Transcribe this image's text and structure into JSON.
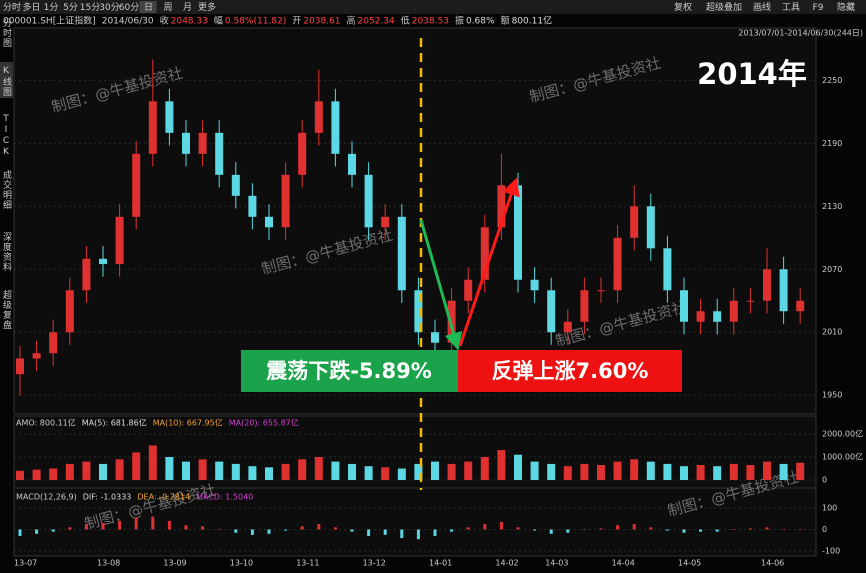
{
  "toolbar": {
    "left": [
      "分时",
      "多日",
      "1分",
      "5分",
      "15分",
      "30分",
      "60分",
      "日",
      "周",
      "月",
      "更多"
    ],
    "right": [
      "复权",
      "超级叠加",
      "画线",
      "工具",
      "F9",
      "隐藏"
    ]
  },
  "info": [
    "000001.SH[上证指数]",
    "2014/06/30",
    "收",
    "2048.33",
    "幅",
    "0.58%(11.82)",
    "开",
    "2038.61",
    "高",
    "2052.34",
    "低",
    "2038.53",
    "振",
    "0.68%",
    "额",
    "800.11亿"
  ],
  "range": "2013/07/01-2014/06/30(244日)",
  "sidebar": [
    "分时图",
    "K线图",
    "TICK",
    "成交明细",
    "深度资料",
    "超级复盘"
  ],
  "year": "2014年",
  "watermark": "制图：@牛基投资社",
  "annotations": [
    "震荡下跌-5.89%",
    "反弹上涨7.60%"
  ],
  "chart_data": [
    {
      "type": "candlestick",
      "up_color": "#e03131",
      "down_color": "#5bd8e3",
      "categories": [
        "13-07",
        null,
        null,
        null,
        null,
        "13-08",
        null,
        null,
        null,
        "13-09",
        null,
        null,
        null,
        "13-10",
        null,
        null,
        null,
        "13-11",
        null,
        null,
        null,
        "13-12",
        null,
        null,
        null,
        "14-01",
        null,
        null,
        null,
        "14-02",
        null,
        null,
        "14-03",
        null,
        null,
        null,
        "14-04",
        null,
        null,
        null,
        "14-05",
        null,
        null,
        null,
        null,
        "14-06",
        null,
        null
      ],
      "open": [
        1970,
        1985,
        1990,
        2010,
        2050,
        2080,
        2075,
        2120,
        2180,
        2230,
        2200,
        2180,
        2200,
        2160,
        2140,
        2120,
        2110,
        2160,
        2200,
        2230,
        2180,
        2160,
        2110,
        2120,
        2050,
        2010,
        2000,
        2040,
        2060,
        2110,
        2150,
        2060,
        2050,
        2010,
        2020,
        2050,
        2050,
        2100,
        2130,
        2090,
        2050,
        2020,
        2030,
        2020,
        2040,
        2040,
        2070,
        2030
      ],
      "close": [
        1985,
        1990,
        2010,
        2050,
        2080,
        2075,
        2120,
        2180,
        2230,
        2200,
        2180,
        2200,
        2160,
        2140,
        2120,
        2110,
        2160,
        2200,
        2230,
        2180,
        2160,
        2110,
        2120,
        2050,
        2010,
        2000,
        2040,
        2060,
        2110,
        2150,
        2060,
        2050,
        2010,
        2020,
        2050,
        2050,
        2100,
        2130,
        2090,
        2050,
        2020,
        2030,
        2020,
        2040,
        2040,
        2070,
        2030,
        2040
      ],
      "high": [
        1997,
        2002,
        2022,
        2062,
        2092,
        2092,
        2132,
        2192,
        2270,
        2242,
        2212,
        2212,
        2212,
        2172,
        2152,
        2132,
        2172,
        2212,
        2260,
        2242,
        2192,
        2172,
        2132,
        2132,
        2062,
        2022,
        2052,
        2072,
        2122,
        2180,
        2162,
        2072,
        2062,
        2032,
        2062,
        2062,
        2112,
        2150,
        2142,
        2102,
        2062,
        2042,
        2042,
        2052,
        2052,
        2090,
        2082,
        2052
      ],
      "low": [
        1950,
        1973,
        1978,
        1998,
        2038,
        2063,
        2063,
        2108,
        2168,
        2188,
        2168,
        2168,
        2148,
        2128,
        2108,
        2098,
        2098,
        2148,
        2188,
        2168,
        2148,
        2098,
        2098,
        2038,
        1998,
        1988,
        1988,
        2028,
        2048,
        2098,
        2048,
        2038,
        1998,
        1998,
        2008,
        2038,
        2038,
        2088,
        2078,
        2038,
        2008,
        2008,
        2008,
        2008,
        2028,
        2028,
        2018,
        2018
      ],
      "ylim": [
        1934,
        2298
      ],
      "yticks": [
        1950,
        2010,
        2070,
        2130,
        2190,
        2250
      ],
      "grid": true
    },
    {
      "type": "bar",
      "legend": [
        "AMO: 800.11亿",
        "MA(5): 681.86亿",
        "MA(10): 667.95亿",
        "MA(20): 655.87亿"
      ],
      "values": [
        400,
        450,
        500,
        700,
        800,
        700,
        900,
        1200,
        1500,
        1000,
        800,
        900,
        800,
        700,
        600,
        550,
        700,
        900,
        1000,
        800,
        700,
        600,
        550,
        500,
        700,
        800,
        700,
        800,
        1000,
        1300,
        1100,
        800,
        700,
        600,
        700,
        650,
        800,
        900,
        800,
        700,
        600,
        650,
        600,
        700,
        650,
        800,
        700,
        750
      ],
      "ylim": [
        0,
        2000
      ],
      "yticks": [
        {
          "value": 0,
          "label": "0"
        },
        {
          "value": 1000,
          "label": "1000.00亿"
        },
        {
          "value": 2000,
          "label": "2000.00亿"
        }
      ]
    },
    {
      "type": "bar",
      "legend": [
        "MACD(12,26,9)",
        "DIF: -1.0333",
        "DEA: -0.2814",
        "MACD: 1.5040"
      ],
      "values": [
        -30,
        -20,
        -10,
        10,
        25,
        30,
        40,
        55,
        60,
        40,
        20,
        15,
        0,
        -15,
        -25,
        -20,
        -5,
        15,
        25,
        10,
        -10,
        -30,
        -25,
        -40,
        -45,
        -30,
        -10,
        10,
        25,
        35,
        10,
        -5,
        -20,
        -15,
        0,
        5,
        20,
        25,
        10,
        -5,
        -15,
        -10,
        -10,
        0,
        5,
        10,
        0,
        2
      ],
      "ylim": [
        -100,
        100
      ],
      "yticks": [
        -100,
        0,
        100
      ]
    }
  ]
}
